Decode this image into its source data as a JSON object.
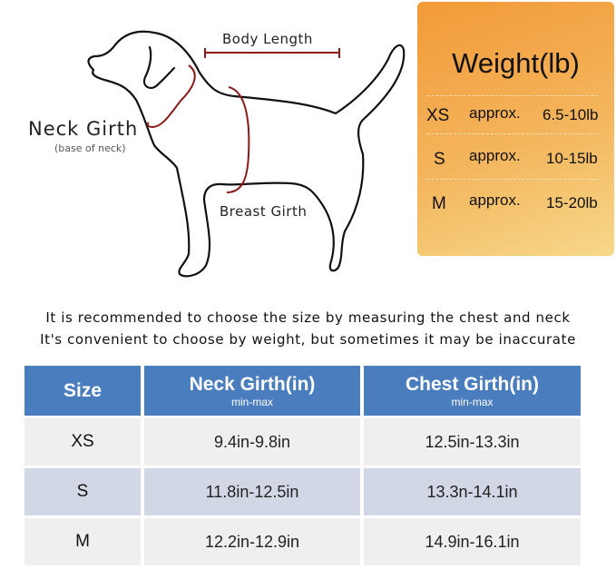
{
  "diagram": {
    "body_length": "Body Length",
    "neck_girth": "Neck Girth",
    "neck_girth_note": "(base of neck)",
    "breast_girth": "Breast Girth",
    "outline_color": "#111111",
    "measure_color": "#8b1a1a"
  },
  "weight_box": {
    "title": "Weight(lb)",
    "rows": [
      {
        "size": "XS",
        "approx": "approx.",
        "range": "6.5-10lb"
      },
      {
        "size": "S",
        "approx": "approx.",
        "range": "10-15lb"
      },
      {
        "size": "M",
        "approx": "approx.",
        "range": "15-20lb"
      }
    ]
  },
  "notes": [
    "It is recommended to choose the size by measuring the chest and neck",
    "It's convenient to choose by weight, but sometimes it may be inaccurate"
  ],
  "size_table": {
    "headers": [
      {
        "label": "Size",
        "sub": ""
      },
      {
        "label": "Neck Girth(in)",
        "sub": "min-max"
      },
      {
        "label": "Chest Girth(in)",
        "sub": "min-max"
      }
    ],
    "rows": [
      [
        "XS",
        "9.4in-9.8in",
        "12.5in-13.3in"
      ],
      [
        "S",
        "11.8in-12.5in",
        "13.3n-14.1in"
      ],
      [
        "M",
        "12.2in-12.9in",
        "14.9in-16.1in"
      ]
    ],
    "header_color": "#4a7dbd"
  }
}
